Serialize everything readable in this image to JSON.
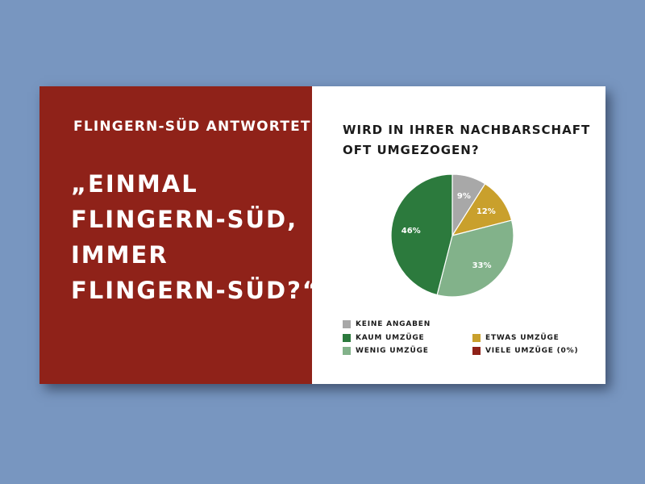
{
  "left": {
    "kicker": "FLINGERN-SÜD ANTWORTET",
    "quote_lines": [
      "„EINMAL",
      "FLINGERN-SÜD,",
      "IMMER",
      "FLINGERN-SÜD?“"
    ]
  },
  "chart_data": {
    "type": "pie",
    "title_lines": [
      "WIRD IN IHRER NACHBARSCHAFT",
      "OFT UMGEZOGEN?"
    ],
    "slices": [
      {
        "name": "KEINE ANGABEN",
        "value": 9,
        "label": "9%",
        "color": "#a8a8a8"
      },
      {
        "name": "ETWAS UMZÜGE",
        "value": 12,
        "label": "12%",
        "color": "#c9a02c"
      },
      {
        "name": "WENIG UMZÜGE",
        "value": 33,
        "label": "33%",
        "color": "#82b28a"
      },
      {
        "name": "KAUM  UMZÜGE",
        "value": 46,
        "label": "46%",
        "color": "#2c7a3d"
      },
      {
        "name": "VIELE UMZÜGE (0%)",
        "value": 0,
        "label": "",
        "color": "#8f2219"
      }
    ],
    "legend": [
      {
        "name": "KEINE ANGABEN",
        "color": "#a8a8a8"
      },
      {
        "name": "KAUM  UMZÜGE",
        "color": "#2c7a3d"
      },
      {
        "name": "WENIG UMZÜGE",
        "color": "#82b28a"
      },
      {
        "name": "ETWAS UMZÜGE",
        "color": "#c9a02c"
      },
      {
        "name": "VIELE UMZÜGE (0%)",
        "color": "#8f2219"
      }
    ]
  }
}
